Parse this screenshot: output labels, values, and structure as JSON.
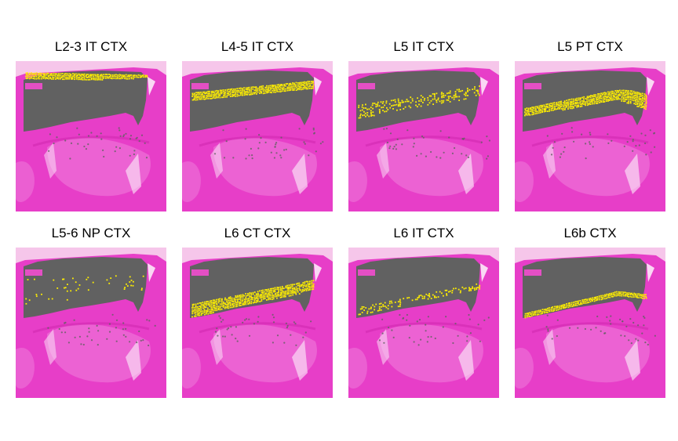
{
  "figure": {
    "panels": [
      {
        "title": "L2-3 IT CTX",
        "band": "top"
      },
      {
        "title": "L4-5 IT CTX",
        "band": "upper"
      },
      {
        "title": "L5 IT CTX",
        "band": "middle-sparse"
      },
      {
        "title": "L5 PT CTX",
        "band": "middle-dense"
      },
      {
        "title": "L5-6 NP CTX",
        "band": "sparse"
      },
      {
        "title": "L6 CT CTX",
        "band": "lower-dense"
      },
      {
        "title": "L6 IT CTX",
        "band": "lower-sparse"
      },
      {
        "title": "L6b CTX",
        "band": "bottom-line"
      }
    ],
    "colors": {
      "tissue": "#e73ec8",
      "tissue_light": "#f07fdc",
      "background": "#f6c6ea",
      "spots": "#616161",
      "highlight": "#ffef00"
    }
  }
}
